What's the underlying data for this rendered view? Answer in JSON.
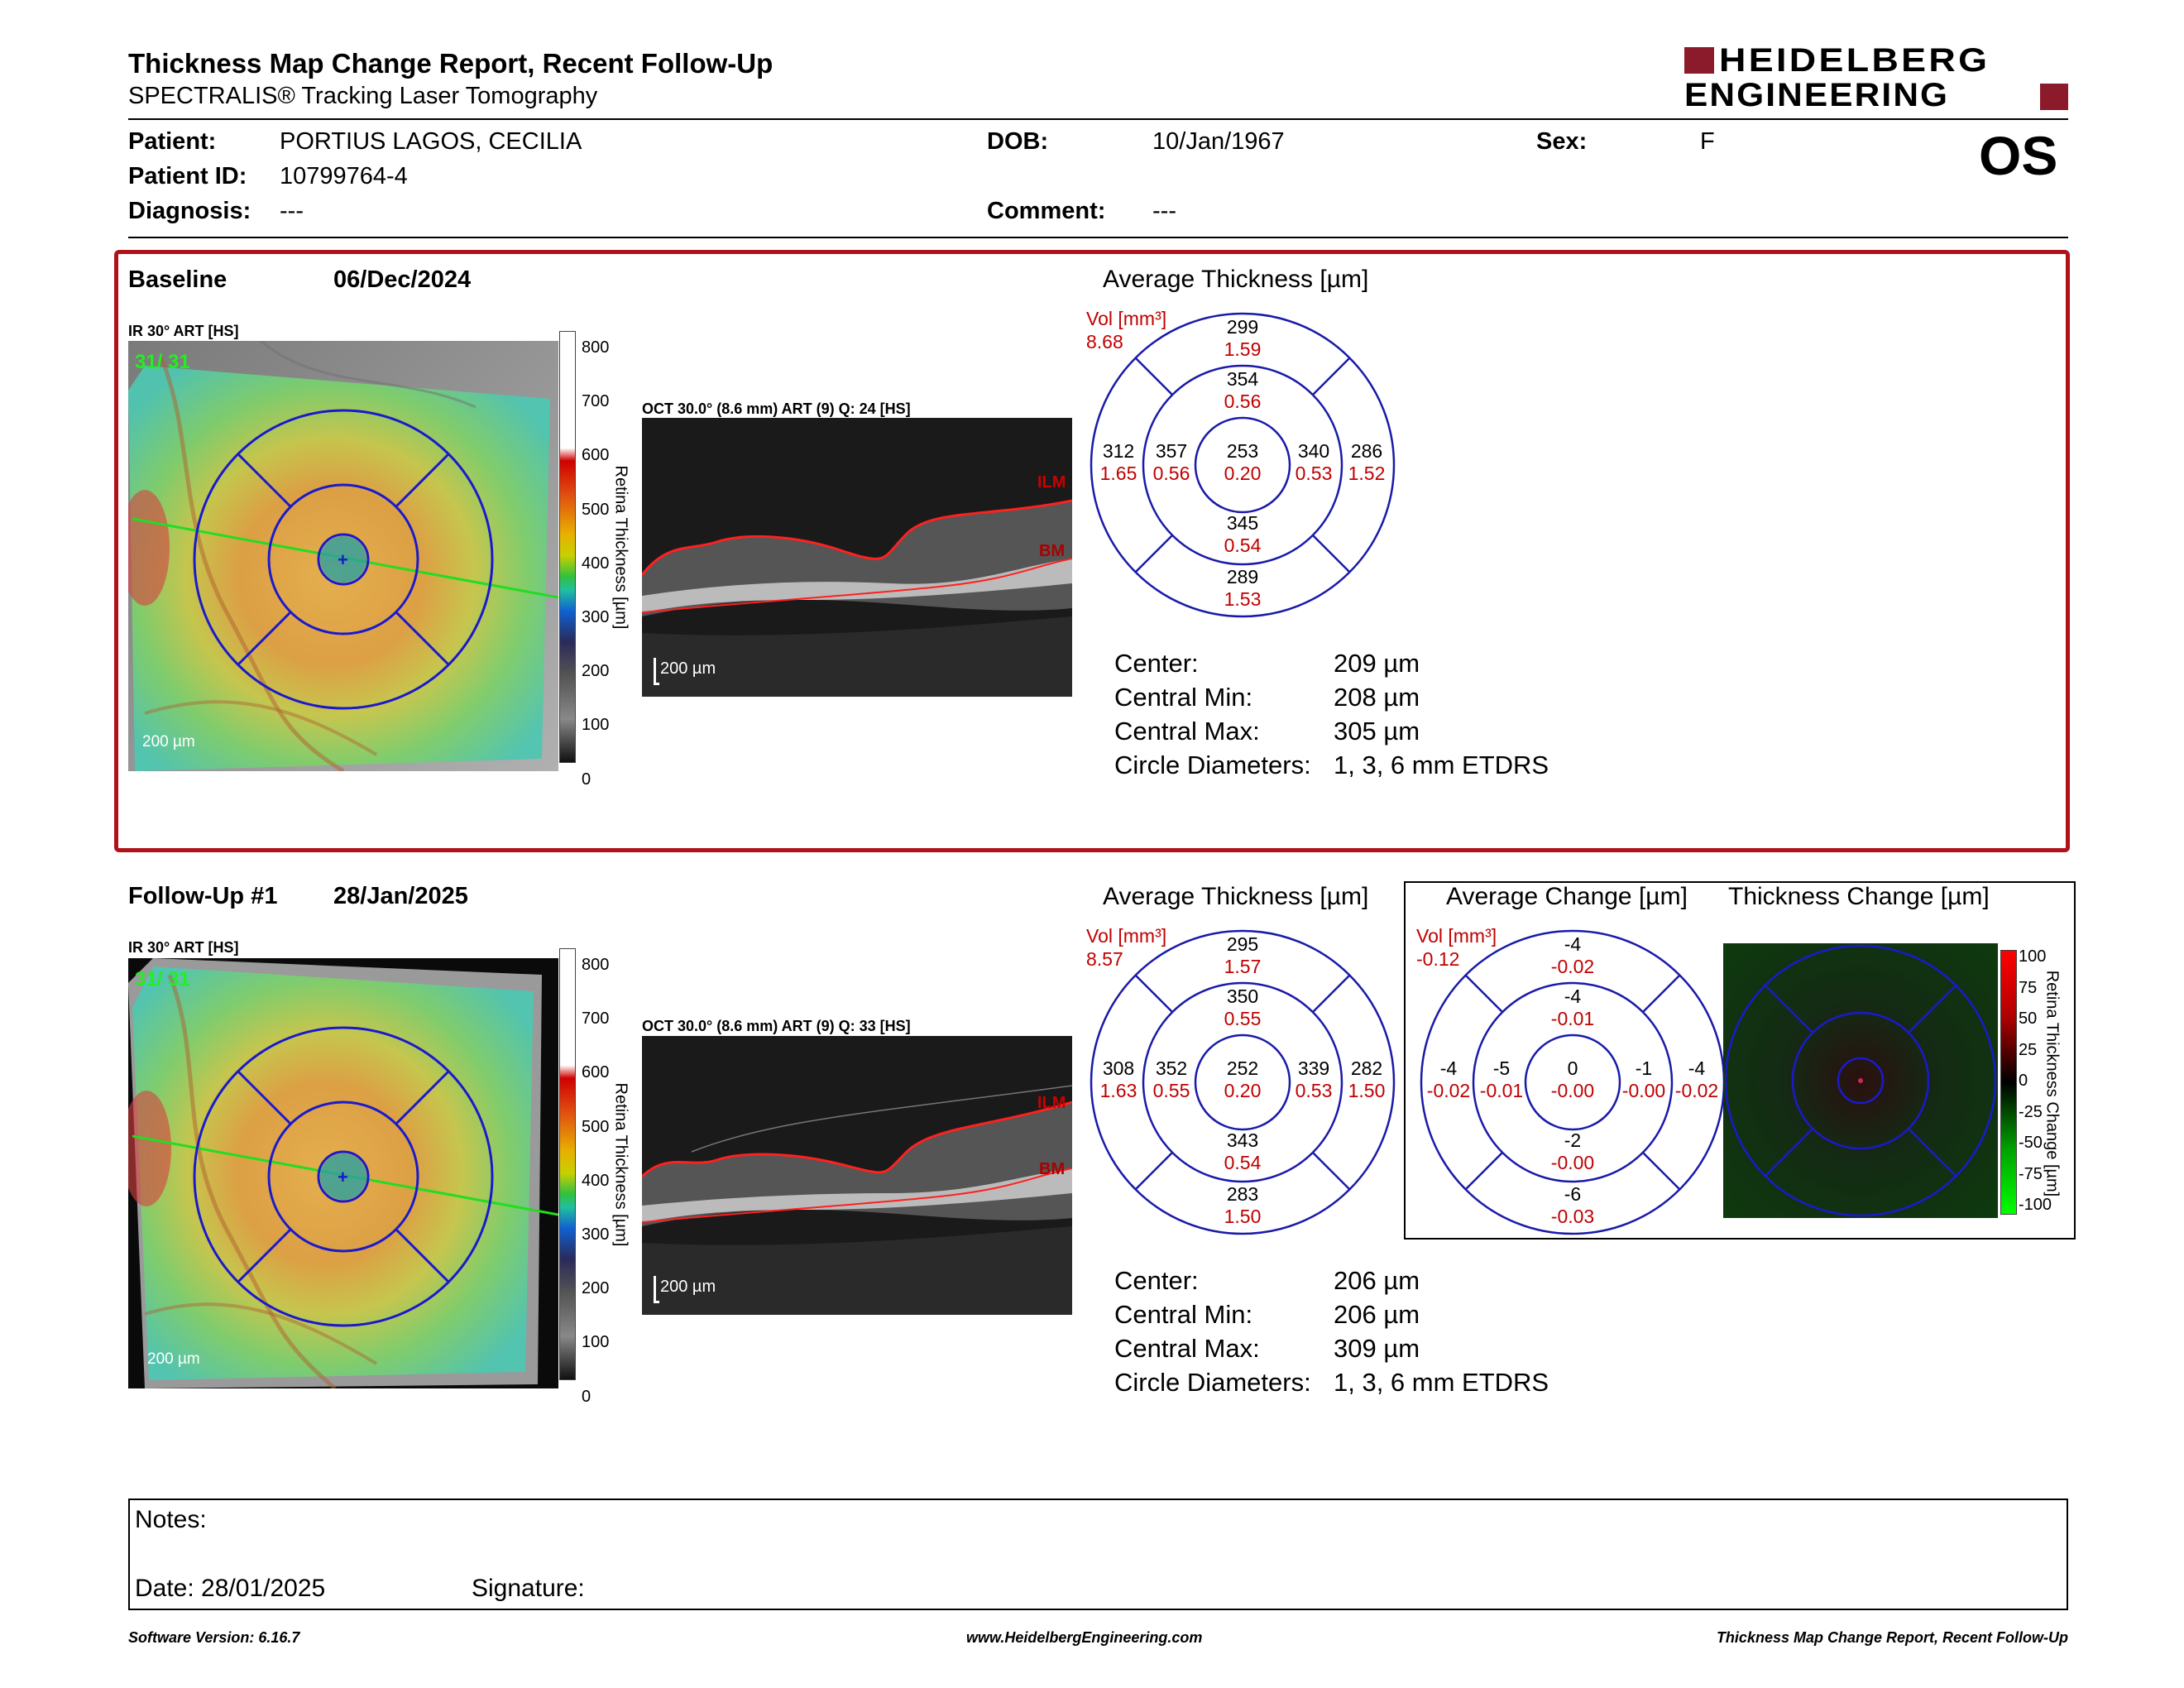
{
  "header": {
    "title": "Thickness Map Change Report, Recent Follow-Up",
    "subtitle": "SPECTRALIS® Tracking Laser Tomography",
    "logo_line1": "HEIDELBERG",
    "logo_line2": "ENGINEERING",
    "eye": "OS",
    "brand_color": "#8b1a2b"
  },
  "patient": {
    "name_label": "Patient:",
    "name": "PORTIUS LAGOS, CECILIA",
    "id_label": "Patient ID:",
    "id": "10799764-4",
    "diagnosis_label": "Diagnosis:",
    "diagnosis": "---",
    "dob_label": "DOB:",
    "dob": "10/Jan/1967",
    "comment_label": "Comment:",
    "comment": "---",
    "sex_label": "Sex:",
    "sex": "F"
  },
  "baseline": {
    "label": "Baseline",
    "date": "06/Dec/2024",
    "ir_title": "IR 30° ART [HS]",
    "ir_overlay_text": "31/ 31",
    "scale_text": "200 µm",
    "oct_title": "OCT 30.0° (8.6 mm) ART (9) Q: 24 [HS]",
    "oct_scale": "200 µm",
    "ilm": "ILM",
    "bm": "BM",
    "colorbar_title": "Retina Thickness [µm]",
    "colorbar_ticks": [
      "800",
      "700",
      "600",
      "500",
      "400",
      "300",
      "200",
      "100",
      "0"
    ],
    "etdrs_title": "Average Thickness [µm]",
    "vol_label": "Vol [mm³]",
    "vol_total": "8.68",
    "etdrs": {
      "center": {
        "t": "253",
        "v": "0.20"
      },
      "inner_sup": {
        "t": "354",
        "v": "0.56"
      },
      "inner_inf": {
        "t": "345",
        "v": "0.54"
      },
      "inner_left": {
        "t": "357",
        "v": "0.56"
      },
      "inner_right": {
        "t": "340",
        "v": "0.53"
      },
      "outer_sup": {
        "t": "299",
        "v": "1.59"
      },
      "outer_inf": {
        "t": "289",
        "v": "1.53"
      },
      "outer_left": {
        "t": "312",
        "v": "1.65"
      },
      "outer_right": {
        "t": "286",
        "v": "1.52"
      }
    },
    "metrics": [
      {
        "k": "Center:",
        "v": "209 µm"
      },
      {
        "k": "Central Min:",
        "v": "208 µm"
      },
      {
        "k": "Central Max:",
        "v": "305 µm"
      },
      {
        "k": "Circle Diameters:",
        "v": "1, 3, 6 mm ETDRS"
      }
    ]
  },
  "followup": {
    "label": "Follow-Up #1",
    "date": "28/Jan/2025",
    "ir_title": "IR 30° ART [HS]",
    "ir_overlay_text": "31/ 31",
    "scale_text": "200 µm",
    "oct_title": "OCT 30.0° (8.6 mm) ART (9) Q: 33 [HS]",
    "oct_scale": "200 µm",
    "ilm": "ILM",
    "bm": "BM",
    "colorbar_title": "Retina Thickness [µm]",
    "colorbar_ticks": [
      "800",
      "700",
      "600",
      "500",
      "400",
      "300",
      "200",
      "100",
      "0"
    ],
    "etdrs_title": "Average Thickness [µm]",
    "vol_label": "Vol [mm³]",
    "vol_total": "8.57",
    "etdrs": {
      "center": {
        "t": "252",
        "v": "0.20"
      },
      "inner_sup": {
        "t": "350",
        "v": "0.55"
      },
      "inner_inf": {
        "t": "343",
        "v": "0.54"
      },
      "inner_left": {
        "t": "352",
        "v": "0.55"
      },
      "inner_right": {
        "t": "339",
        "v": "0.53"
      },
      "outer_sup": {
        "t": "295",
        "v": "1.57"
      },
      "outer_inf": {
        "t": "283",
        "v": "1.50"
      },
      "outer_left": {
        "t": "308",
        "v": "1.63"
      },
      "outer_right": {
        "t": "282",
        "v": "1.50"
      }
    },
    "change_title": "Average Change [µm]",
    "change_vol_label": "Vol [mm³]",
    "change_vol_total": "-0.12",
    "change": {
      "center": {
        "t": "0",
        "v": "-0.00"
      },
      "inner_sup": {
        "t": "-4",
        "v": "-0.01"
      },
      "inner_inf": {
        "t": "-2",
        "v": "-0.00"
      },
      "inner_left": {
        "t": "-5",
        "v": "-0.01"
      },
      "inner_right": {
        "t": "-1",
        "v": "-0.00"
      },
      "outer_sup": {
        "t": "-4",
        "v": "-0.02"
      },
      "outer_inf": {
        "t": "-6",
        "v": "-0.03"
      },
      "outer_left": {
        "t": "-4",
        "v": "-0.02"
      },
      "outer_right": {
        "t": "-4",
        "v": "-0.02"
      }
    },
    "thickness_change_title": "Thickness Change [µm]",
    "change_colorbar_title": "Retina Thickness Change [µm]",
    "change_colorbar_ticks": [
      "100",
      "75",
      "50",
      "25",
      "0",
      "-25",
      "-50",
      "-75",
      "-100"
    ],
    "metrics": [
      {
        "k": "Center:",
        "v": "206 µm"
      },
      {
        "k": "Central Min:",
        "v": "206 µm"
      },
      {
        "k": "Central Max:",
        "v": "309 µm"
      },
      {
        "k": "Circle Diameters:",
        "v": "1, 3, 6 mm ETDRS"
      }
    ]
  },
  "notes": {
    "notes_label": "Notes:",
    "date_label": "Date: 28/01/2025",
    "signature_label": "Signature:"
  },
  "footer": {
    "left": "Software Version: 6.16.7",
    "center": "www.HeidelbergEngineering.com",
    "right": "Thickness Map Change Report, Recent Follow-Up"
  }
}
